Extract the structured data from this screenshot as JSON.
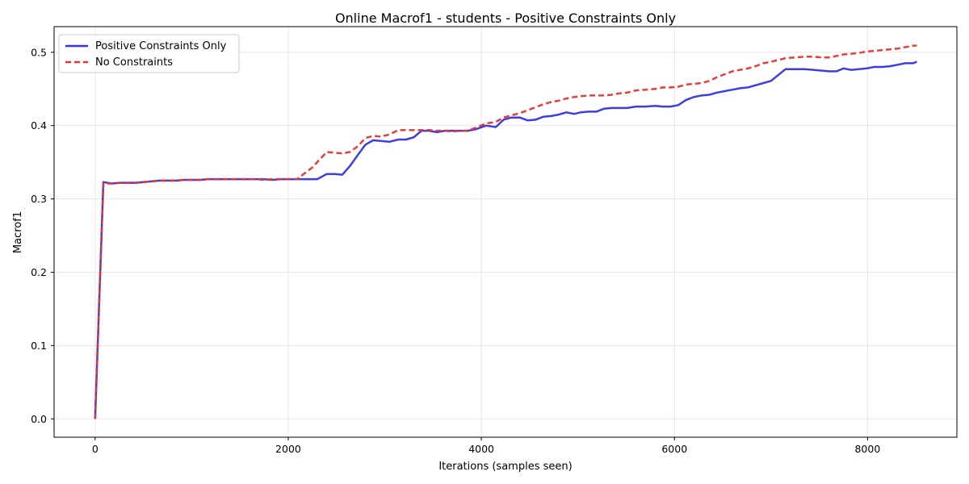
{
  "chart_data": {
    "type": "line",
    "title": "Online Macrof1 - students - Positive Constraints Only",
    "xlabel": "Iterations (samples seen)",
    "ylabel": "Macrof1",
    "xlim": [
      -425,
      8925
    ],
    "ylim": [
      -0.025,
      0.535
    ],
    "xticks": [
      0,
      2000,
      4000,
      6000,
      8000
    ],
    "xtick_labels": [
      "0",
      "2000",
      "4000",
      "6000",
      "8000"
    ],
    "yticks": [
      0.0,
      0.1,
      0.2,
      0.3,
      0.4,
      0.5
    ],
    "ytick_labels": [
      "0.0",
      "0.1",
      "0.2",
      "0.3",
      "0.4",
      "0.5"
    ],
    "grid": true,
    "legend_position": "top-left",
    "series": [
      {
        "name": "Positive Constraints Only",
        "color": "#3333e6",
        "style": "solid",
        "x": [
          0,
          85,
          170,
          250,
          340,
          420,
          500,
          590,
          670,
          750,
          840,
          920,
          1000,
          1090,
          1170,
          1250,
          1340,
          1420,
          1500,
          1590,
          1670,
          1750,
          1840,
          1920,
          2000,
          2090,
          2170,
          2250,
          2300,
          2400,
          2480,
          2560,
          2640,
          2720,
          2800,
          2880,
          2960,
          3050,
          3140,
          3220,
          3300,
          3380,
          3460,
          3540,
          3620,
          3700,
          3780,
          3860,
          3940,
          4050,
          4150,
          4230,
          4310,
          4400,
          4480,
          4560,
          4640,
          4720,
          4800,
          4880,
          4960,
          5030,
          5110,
          5190,
          5270,
          5350,
          5430,
          5510,
          5600,
          5700,
          5800,
          5880,
          5960,
          6040,
          6120,
          6200,
          6280,
          6360,
          6440,
          6520,
          6600,
          6680,
          6760,
          6840,
          6920,
          7000,
          7150,
          7250,
          7350,
          7440,
          7520,
          7600,
          7680,
          7750,
          7830,
          7910,
          7990,
          8070,
          8150,
          8230,
          8310,
          8390,
          8470,
          8510
        ],
        "y": [
          0.0,
          0.323,
          0.321,
          0.322,
          0.322,
          0.322,
          0.323,
          0.324,
          0.325,
          0.325,
          0.325,
          0.326,
          0.326,
          0.326,
          0.327,
          0.327,
          0.327,
          0.327,
          0.327,
          0.327,
          0.327,
          0.327,
          0.326,
          0.327,
          0.327,
          0.327,
          0.327,
          0.327,
          0.327,
          0.334,
          0.334,
          0.333,
          0.345,
          0.36,
          0.374,
          0.38,
          0.379,
          0.378,
          0.381,
          0.381,
          0.384,
          0.393,
          0.393,
          0.391,
          0.393,
          0.393,
          0.393,
          0.393,
          0.395,
          0.4,
          0.398,
          0.408,
          0.411,
          0.411,
          0.407,
          0.408,
          0.412,
          0.413,
          0.415,
          0.418,
          0.416,
          0.418,
          0.419,
          0.419,
          0.423,
          0.424,
          0.424,
          0.424,
          0.426,
          0.426,
          0.427,
          0.426,
          0.426,
          0.428,
          0.435,
          0.439,
          0.441,
          0.442,
          0.445,
          0.447,
          0.449,
          0.451,
          0.452,
          0.455,
          0.458,
          0.461,
          0.477,
          0.477,
          0.477,
          0.476,
          0.475,
          0.474,
          0.474,
          0.478,
          0.476,
          0.477,
          0.478,
          0.48,
          0.48,
          0.481,
          0.483,
          0.485,
          0.485,
          0.487
        ]
      },
      {
        "name": "No Constraints",
        "color": "#e63333",
        "style": "dashed",
        "x": [
          0,
          85,
          170,
          250,
          340,
          420,
          500,
          590,
          670,
          750,
          840,
          920,
          1000,
          1090,
          1170,
          1250,
          1340,
          1420,
          1500,
          1590,
          1670,
          1750,
          1840,
          1920,
          2000,
          2090,
          2170,
          2250,
          2320,
          2400,
          2480,
          2560,
          2640,
          2720,
          2800,
          2880,
          2960,
          3050,
          3140,
          3220,
          3300,
          3380,
          3460,
          3540,
          3620,
          3700,
          3780,
          3860,
          3940,
          4050,
          4150,
          4230,
          4310,
          4400,
          4480,
          4560,
          4640,
          4720,
          4800,
          4880,
          4960,
          5030,
          5110,
          5190,
          5270,
          5350,
          5430,
          5510,
          5600,
          5700,
          5800,
          5880,
          5960,
          6040,
          6120,
          6200,
          6280,
          6360,
          6440,
          6520,
          6600,
          6680,
          6760,
          6840,
          6920,
          7000,
          7150,
          7250,
          7350,
          7440,
          7520,
          7600,
          7680,
          7750,
          7830,
          7910,
          7990,
          8070,
          8150,
          8230,
          8310,
          8390,
          8470,
          8510
        ],
        "y": [
          0.0,
          0.321,
          0.321,
          0.322,
          0.322,
          0.322,
          0.323,
          0.324,
          0.325,
          0.325,
          0.325,
          0.326,
          0.326,
          0.326,
          0.327,
          0.327,
          0.327,
          0.327,
          0.327,
          0.327,
          0.327,
          0.326,
          0.327,
          0.327,
          0.327,
          0.327,
          0.335,
          0.343,
          0.353,
          0.364,
          0.363,
          0.362,
          0.364,
          0.372,
          0.383,
          0.386,
          0.385,
          0.388,
          0.394,
          0.394,
          0.394,
          0.394,
          0.394,
          0.393,
          0.393,
          0.392,
          0.393,
          0.393,
          0.397,
          0.403,
          0.405,
          0.411,
          0.414,
          0.417,
          0.421,
          0.425,
          0.429,
          0.432,
          0.434,
          0.437,
          0.439,
          0.44,
          0.441,
          0.441,
          0.441,
          0.442,
          0.444,
          0.445,
          0.448,
          0.449,
          0.45,
          0.452,
          0.452,
          0.453,
          0.456,
          0.457,
          0.458,
          0.461,
          0.466,
          0.47,
          0.474,
          0.476,
          0.478,
          0.481,
          0.485,
          0.487,
          0.492,
          0.493,
          0.494,
          0.494,
          0.493,
          0.493,
          0.495,
          0.497,
          0.498,
          0.499,
          0.501,
          0.502,
          0.503,
          0.504,
          0.505,
          0.507,
          0.509,
          0.509
        ]
      }
    ]
  }
}
